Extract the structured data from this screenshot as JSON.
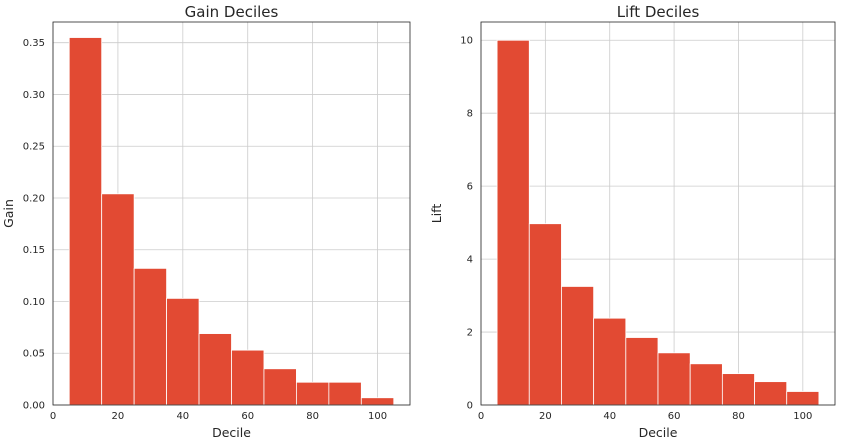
{
  "chart_data": [
    {
      "type": "bar",
      "title": "Gain Deciles",
      "xlabel": "Decile",
      "ylabel": "Gain",
      "xlim": [
        0,
        110
      ],
      "ylim": [
        0,
        0.37
      ],
      "grid": true,
      "bar_color": "#e24a33",
      "x_ticks": [
        0,
        20,
        40,
        60,
        80,
        100
      ],
      "x_tick_labels": [
        "0",
        "20",
        "40",
        "60",
        "80",
        "100"
      ],
      "y_ticks": [
        0,
        0.05,
        0.1,
        0.15,
        0.2,
        0.25,
        0.3,
        0.35
      ],
      "y_tick_labels": [
        "0.00",
        "0.05",
        "0.10",
        "0.15",
        "0.20",
        "0.25",
        "0.30",
        "0.35"
      ],
      "bins": [
        {
          "x0": 5,
          "x1": 15,
          "value": 0.355
        },
        {
          "x0": 15,
          "x1": 25,
          "value": 0.204
        },
        {
          "x0": 25,
          "x1": 35,
          "value": 0.132
        },
        {
          "x0": 35,
          "x1": 45,
          "value": 0.103
        },
        {
          "x0": 45,
          "x1": 55,
          "value": 0.069
        },
        {
          "x0": 55,
          "x1": 65,
          "value": 0.053
        },
        {
          "x0": 65,
          "x1": 75,
          "value": 0.035
        },
        {
          "x0": 75,
          "x1": 85,
          "value": 0.022
        },
        {
          "x0": 85,
          "x1": 95,
          "value": 0.022
        },
        {
          "x0": 95,
          "x1": 105,
          "value": 0.007
        }
      ]
    },
    {
      "type": "bar",
      "title": "Lift Deciles",
      "xlabel": "Decile",
      "ylabel": "Lift",
      "xlim": [
        0,
        110
      ],
      "ylim": [
        0,
        10.5
      ],
      "grid": true,
      "bar_color": "#e24a33",
      "x_ticks": [
        0,
        20,
        40,
        60,
        80,
        100
      ],
      "x_tick_labels": [
        "0",
        "20",
        "40",
        "60",
        "80",
        "100"
      ],
      "y_ticks": [
        0,
        2,
        4,
        6,
        8,
        10
      ],
      "y_tick_labels": [
        "0",
        "2",
        "4",
        "6",
        "8",
        "10"
      ],
      "bins": [
        {
          "x0": 5,
          "x1": 15,
          "value": 10.0
        },
        {
          "x0": 15,
          "x1": 25,
          "value": 4.97
        },
        {
          "x0": 25,
          "x1": 35,
          "value": 3.25
        },
        {
          "x0": 35,
          "x1": 45,
          "value": 2.38
        },
        {
          "x0": 45,
          "x1": 55,
          "value": 1.85
        },
        {
          "x0": 55,
          "x1": 65,
          "value": 1.43
        },
        {
          "x0": 65,
          "x1": 75,
          "value": 1.13
        },
        {
          "x0": 75,
          "x1": 85,
          "value": 0.86
        },
        {
          "x0": 85,
          "x1": 95,
          "value": 0.64
        },
        {
          "x0": 95,
          "x1": 105,
          "value": 0.37
        }
      ]
    }
  ]
}
